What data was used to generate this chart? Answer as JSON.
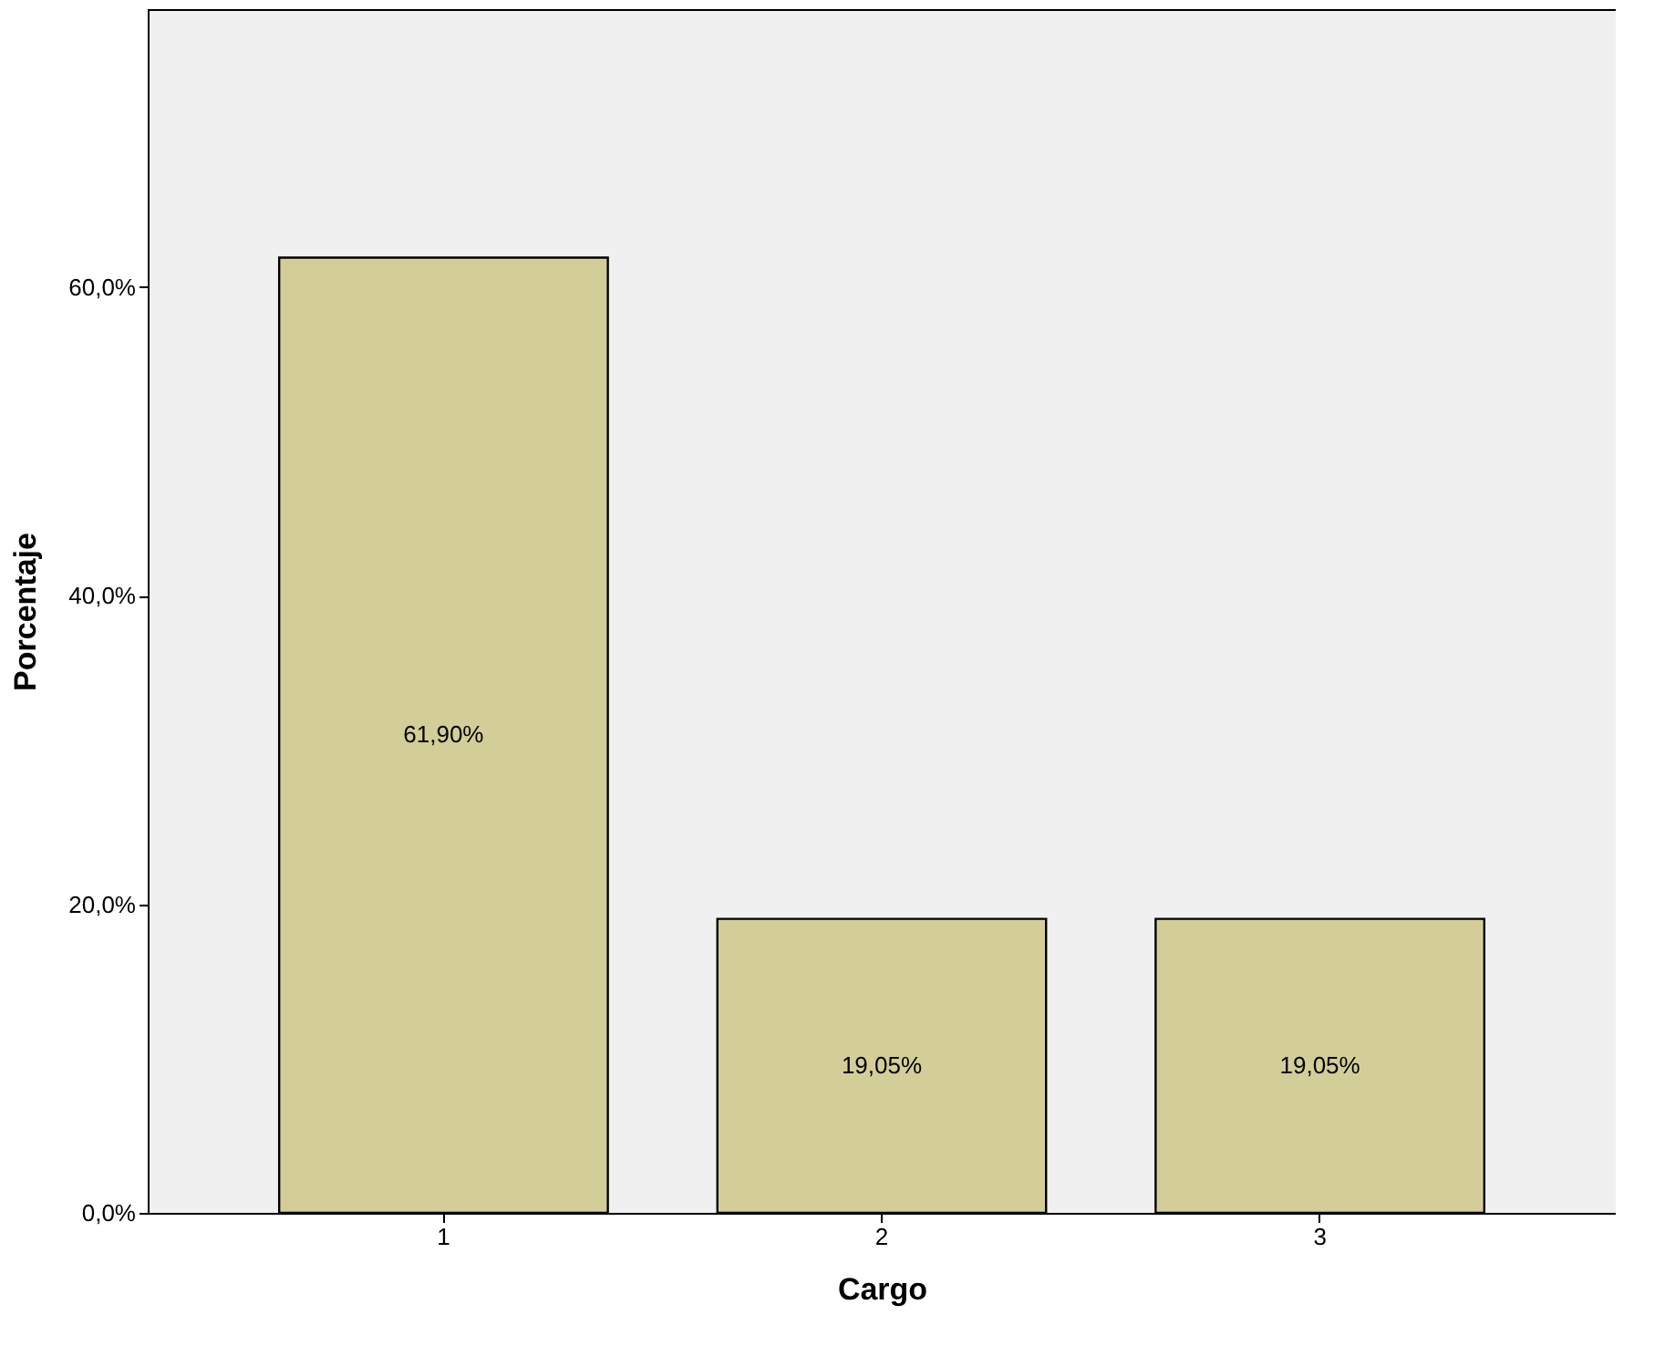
{
  "chart_data": {
    "type": "bar",
    "xlabel": "Cargo",
    "ylabel": "Porcentaje",
    "categories": [
      "1",
      "2",
      "3"
    ],
    "values": [
      61.9,
      19.05,
      19.05
    ],
    "value_labels": [
      "61,90%",
      "19,05%",
      "19,05%"
    ],
    "color": "#d3ce97",
    "ylim": [
      0,
      78
    ],
    "yticks": [
      {
        "value": 0,
        "label": "0,0%"
      },
      {
        "value": 20,
        "label": "20,0%"
      },
      {
        "value": 40,
        "label": "40,0%"
      },
      {
        "value": 60,
        "label": "60,0%"
      }
    ],
    "grid": false
  }
}
